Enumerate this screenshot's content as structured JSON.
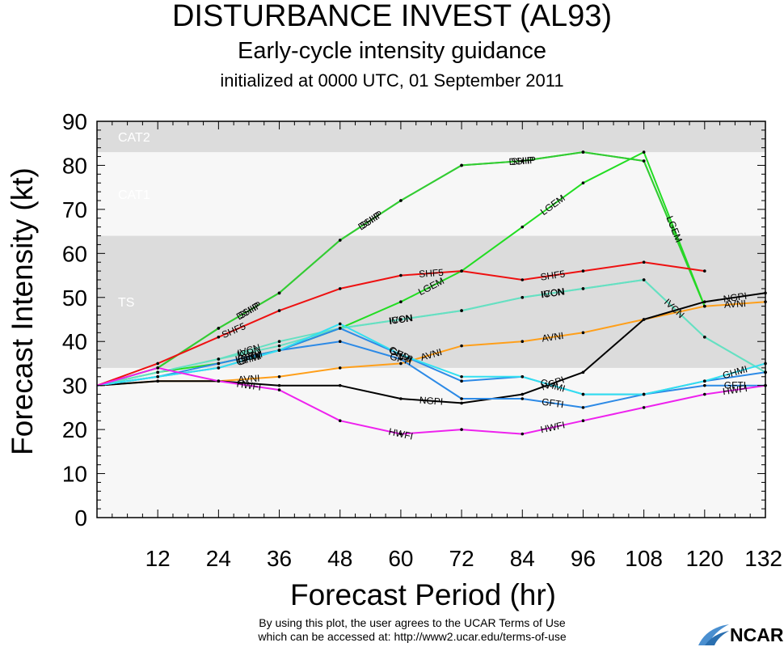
{
  "header": {
    "title": "DISTURBANCE INVEST (AL93)",
    "subtitle": "Early-cycle intensity guidance",
    "init": "initialized at 0000 UTC, 01 September 2011"
  },
  "footer": {
    "line1": "By using this plot, the user agrees to the UCAR Terms of Use",
    "line2": "which can be accessed at: http://www2.ucar.edu/terms-of-use",
    "logo": "NCAR"
  },
  "chart_data": {
    "type": "line",
    "title": "DISTURBANCE INVEST (AL93)",
    "xlabel": "Forecast Period (hr)",
    "ylabel": "Forecast Intensity (kt)",
    "xlim": [
      0,
      132
    ],
    "ylim": [
      0,
      90
    ],
    "xticks": [
      12,
      24,
      36,
      48,
      60,
      72,
      84,
      96,
      108,
      120,
      132
    ],
    "yticks": [
      0,
      10,
      20,
      30,
      40,
      50,
      60,
      70,
      80,
      90
    ],
    "bands": [
      {
        "label": "TS",
        "from": 34,
        "to": 64,
        "color": "#dcdcdc"
      },
      {
        "label": "CAT1",
        "from": 64,
        "to": 83,
        "color": "#f7f7f7"
      },
      {
        "label": "CAT2",
        "from": 83,
        "to": 90,
        "color": "#dcdcdc"
      }
    ],
    "below_band_color": "#f7f7f7",
    "series": [
      {
        "name": "SHIP",
        "color": "#33cc33",
        "label_color": "#000000",
        "x": [
          0,
          12,
          24,
          36,
          48,
          60,
          72,
          84,
          96,
          108,
          120
        ],
        "values": [
          30,
          34,
          43,
          51,
          63,
          72,
          80,
          81,
          83,
          81,
          48
        ],
        "label_at": [
          30,
          54,
          84
        ]
      },
      {
        "name": "DSHP",
        "color": "#33cc33",
        "label_color": "#000000",
        "x": [
          0,
          12,
          24,
          36,
          48,
          60,
          72,
          84,
          96,
          108,
          120
        ],
        "values": [
          30,
          34,
          43,
          51,
          63,
          72,
          80,
          81,
          83,
          81,
          48
        ],
        "label_at": [
          30,
          54,
          84
        ]
      },
      {
        "name": "LGEM",
        "color": "#22dd22",
        "label_color": "#000000",
        "x": [
          0,
          12,
          24,
          36,
          48,
          60,
          72,
          84,
          96,
          108,
          120
        ],
        "values": [
          30,
          33,
          35,
          38,
          43,
          49,
          56,
          66,
          76,
          83,
          48
        ],
        "label_at": [
          30,
          66,
          90,
          114
        ]
      },
      {
        "name": "SHF5",
        "color": "#ee1111",
        "label_color": "#000000",
        "x": [
          0,
          12,
          24,
          36,
          48,
          60,
          72,
          84,
          96,
          108,
          120
        ],
        "values": [
          30,
          35,
          41,
          47,
          52,
          55,
          56,
          54,
          56,
          58,
          56
        ],
        "label_at": [
          27,
          66,
          90
        ]
      },
      {
        "name": "ICON",
        "color": "#66e0c2",
        "label_color": "#000000",
        "x": [
          0,
          12,
          24,
          36,
          48,
          60,
          72,
          84,
          96,
          108,
          120,
          132
        ],
        "values": [
          30,
          33,
          36,
          39,
          43,
          45,
          47,
          50,
          52,
          54,
          41,
          33
        ],
        "label_at": [
          30,
          60,
          90
        ]
      },
      {
        "name": "IVCN",
        "color": "#66e0c2",
        "label_color": "#000000",
        "x": [
          0,
          12,
          24,
          36,
          48,
          60,
          72,
          84,
          96,
          108,
          120,
          132
        ],
        "values": [
          30,
          33,
          36,
          40,
          43,
          45,
          47,
          50,
          52,
          54,
          41,
          33
        ],
        "label_at": [
          30,
          60,
          90,
          114
        ]
      },
      {
        "name": "AVNI",
        "color": "#ff9f1a",
        "label_color": "#000000",
        "x": [
          0,
          12,
          24,
          36,
          48,
          60,
          72,
          84,
          96,
          108,
          120,
          132
        ],
        "values": [
          30,
          31,
          31,
          32,
          34,
          35,
          39,
          40,
          42,
          45,
          48,
          49
        ],
        "label_at": [
          30,
          66,
          90,
          126
        ]
      },
      {
        "name": "NGPI",
        "color": "#000000",
        "label_color": "#000000",
        "x": [
          0,
          12,
          24,
          36,
          48,
          60,
          72,
          84,
          96,
          108,
          120,
          132
        ],
        "values": [
          30,
          31,
          31,
          30,
          30,
          27,
          26,
          28,
          33,
          45,
          49,
          51
        ],
        "label_at": [
          66,
          90,
          126
        ]
      },
      {
        "name": "GFTI",
        "color": "#2d8ae6",
        "label_color": "#000000",
        "x": [
          0,
          12,
          24,
          36,
          48,
          60,
          72,
          84,
          96,
          108,
          120,
          132
        ],
        "values": [
          30,
          32,
          34,
          38,
          40,
          36,
          27,
          27,
          25,
          28,
          30,
          30
        ],
        "label_at": [
          30,
          60,
          90,
          126
        ]
      },
      {
        "name": "GFDI",
        "color": "#2d8ae6",
        "label_color": "#000000",
        "x": [
          0,
          12,
          24,
          36,
          48,
          60,
          72,
          84,
          96,
          108,
          120,
          132
        ],
        "values": [
          30,
          32,
          35,
          38,
          43,
          37,
          31,
          32,
          28,
          28,
          31,
          33
        ],
        "label_at": [
          30,
          60
        ]
      },
      {
        "name": "GHMI",
        "color": "#33e0f0",
        "label_color": "#000000",
        "x": [
          0,
          12,
          24,
          36,
          48,
          60,
          72,
          84,
          96,
          108,
          120,
          132
        ],
        "values": [
          30,
          32,
          34,
          38,
          44,
          37,
          32,
          32,
          28,
          28,
          31,
          35
        ],
        "label_at": [
          30,
          60,
          90,
          126
        ]
      },
      {
        "name": "HWFI",
        "color": "#ee22ee",
        "label_color": "#000000",
        "x": [
          0,
          12,
          24,
          36,
          48,
          60,
          72,
          84,
          96,
          108,
          120,
          132
        ],
        "values": [
          30,
          34,
          31,
          29,
          22,
          19,
          20,
          19,
          22,
          25,
          28,
          30
        ],
        "label_at": [
          30,
          60,
          90,
          126
        ]
      }
    ]
  }
}
